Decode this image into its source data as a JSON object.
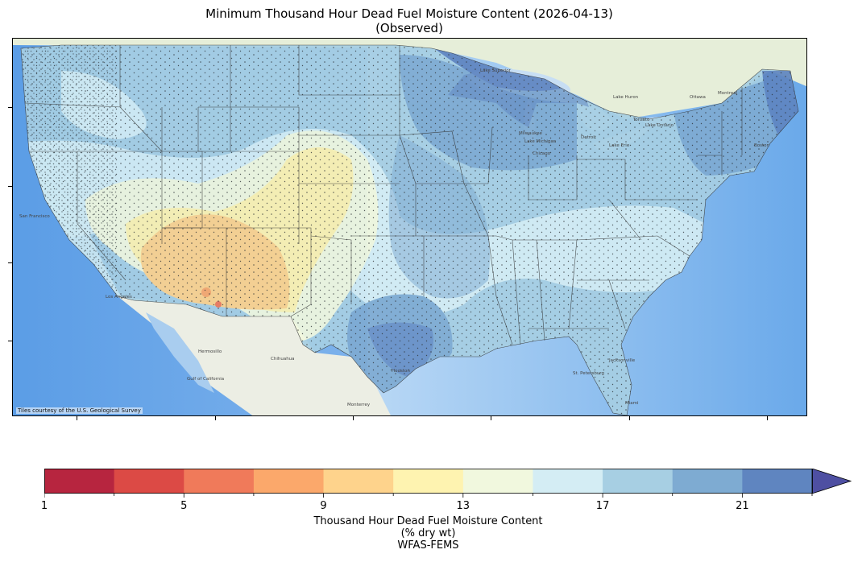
{
  "title": {
    "line1": "Minimum Thousand Hour Dead Fuel Moisture Content (2026-04-13)",
    "line2": "(Observed)"
  },
  "map": {
    "attribution": "Tiles courtesy of the U.S. Geological Survey",
    "places": [
      "Lake Superior",
      "Lake Huron",
      "Lake Michigan",
      "Lake Erie",
      "Lake Ontario",
      "Milwaukee",
      "Toronto",
      "Ottawa",
      "Montreal",
      "Boston",
      "Chicago",
      "Detroit",
      "San Francisco",
      "Los Angeles",
      "Chihuahua",
      "Hermosillo",
      "Gulf of California",
      "Monterrey",
      "Jacksonville",
      "St. Petersburg",
      "Miami",
      "Houston"
    ]
  },
  "colorbar": {
    "tick_labels": [
      "1",
      "5",
      "9",
      "13",
      "17",
      "21"
    ],
    "ticks": [
      1,
      5,
      9,
      13,
      17,
      21
    ],
    "range": [
      1,
      23
    ],
    "bin_edges": [
      1,
      3,
      5,
      7,
      9,
      11,
      13,
      15,
      17,
      19,
      21,
      23
    ],
    "colors": [
      "#b7253f",
      "#dc4a45",
      "#f07a5a",
      "#fba86b",
      "#fed38c",
      "#fef3b0",
      "#f1f8de",
      "#d4edf4",
      "#a7cfe3",
      "#7eabd2",
      "#5f85c0"
    ],
    "extend_color": "#4e4fa2",
    "label_line1": "Thousand Hour Dead Fuel Moisture Content",
    "label_line2": "(% dry wt)",
    "label_line3": "WFAS-FEMS"
  },
  "colors": {
    "ocean": "#7db4ec",
    "land_base": "#e8ecdf",
    "border": "#333333"
  }
}
